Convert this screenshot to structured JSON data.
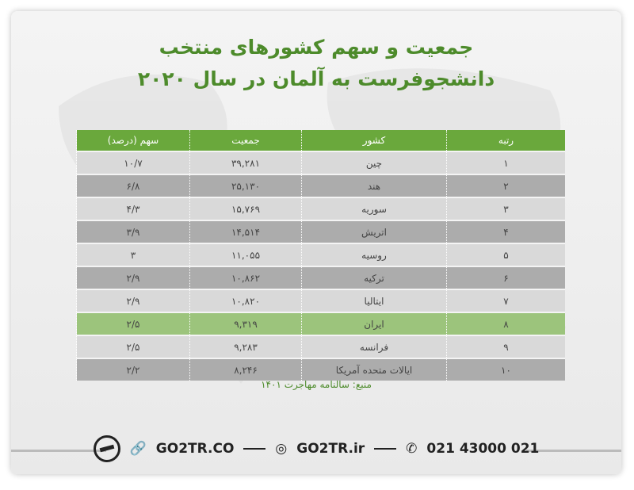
{
  "title": {
    "line1": "جمعیت و سهم کشورهای منتخب",
    "line2": "دانشجوفرست به آلمان در سال ۲۰۲۰"
  },
  "table": {
    "headers": [
      "رتبه",
      "کشور",
      "جمعیت",
      "سهم (درصد)"
    ],
    "rows": [
      {
        "rank": "۱",
        "country": "چین",
        "population": "۳۹,۲۸۱",
        "share": "۱۰/۷"
      },
      {
        "rank": "۲",
        "country": "هند",
        "population": "۲۵,۱۳۰",
        "share": "۶/۸"
      },
      {
        "rank": "۳",
        "country": "سوریه",
        "population": "۱۵,۷۶۹",
        "share": "۴/۳"
      },
      {
        "rank": "۴",
        "country": "اتریش",
        "population": "۱۴,۵۱۴",
        "share": "۳/۹"
      },
      {
        "rank": "۵",
        "country": "روسیه",
        "population": "۱۱,۰۵۵",
        "share": "۳"
      },
      {
        "rank": "۶",
        "country": "ترکیه",
        "population": "۱۰,۸۶۲",
        "share": "۲/۹"
      },
      {
        "rank": "۷",
        "country": "ایتالیا",
        "population": "۱۰,۸۲۰",
        "share": "۲/۹"
      },
      {
        "rank": "۸",
        "country": "ایران",
        "population": "۹,۳۱۹",
        "share": "۲/۵"
      },
      {
        "rank": "۹",
        "country": "فرانسه",
        "population": "۹,۲۸۳",
        "share": "۲/۵"
      },
      {
        "rank": "۱۰",
        "country": "ایالات متحده آمریکا",
        "population": "۸,۲۴۶",
        "share": "۲/۲"
      }
    ]
  },
  "source": "منبع: سالنامه مهاجرت ۱۴۰۱",
  "footer": {
    "website": "GO2TR.CO",
    "instagram": "GO2TR.ir",
    "phone": "021 43000 021"
  },
  "colors": {
    "accent": "#6aa83c",
    "title": "#4d8b2b",
    "highlight": "#9cc47c"
  }
}
